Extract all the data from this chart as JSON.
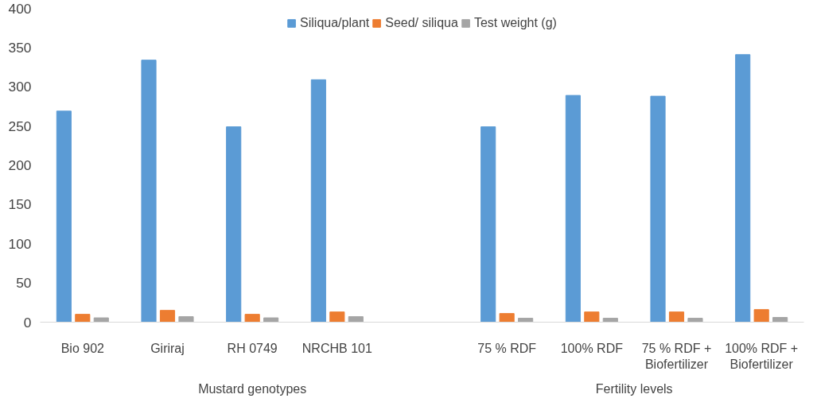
{
  "chart_data": {
    "type": "bar",
    "categories": [
      "Bio 902",
      "Giriraj",
      "RH 0749",
      "NRCHB 101",
      null,
      "75 % RDF",
      "100% RDF",
      "75 % RDF +\nBiofertilizer",
      "100% RDF +\nBiofertilizer"
    ],
    "series": [
      {
        "name": "Siliqua/plant",
        "color": "#5b9bd5",
        "values": [
          269,
          334,
          249,
          309,
          null,
          249,
          289,
          288,
          341
        ]
      },
      {
        "name": "Seed/ siliqua",
        "color": "#ed7d31",
        "values": [
          10,
          15,
          10,
          13,
          null,
          11,
          13,
          13,
          16
        ]
      },
      {
        "name": "Test weight (g)",
        "color": "#a5a5a5",
        "values": [
          5.5,
          7,
          5.5,
          7,
          null,
          5,
          5,
          5,
          6
        ]
      }
    ],
    "ylim": [
      0,
      400
    ],
    "yticks": [
      0,
      50,
      100,
      150,
      200,
      250,
      300,
      350,
      400
    ],
    "grid": false,
    "legend": "top",
    "annotations": [
      "Mustard genotypes",
      "Fertility levels"
    ]
  }
}
